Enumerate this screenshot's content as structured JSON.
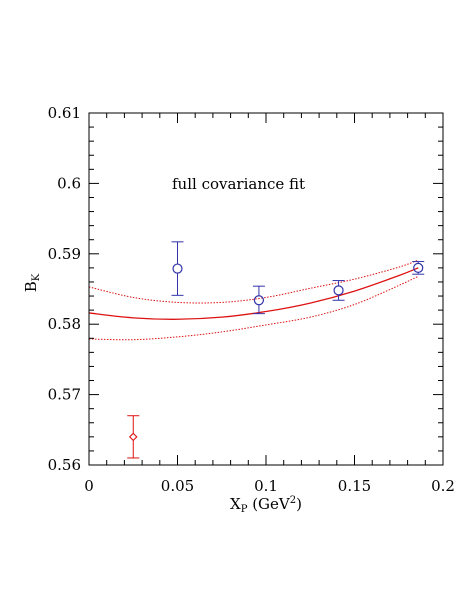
{
  "chart_data": {
    "type": "scatter",
    "title": "",
    "annotation": "full covariance fit",
    "xlabel": {
      "main": "X",
      "sub": "P",
      "units_pre": " (GeV",
      "sup": "2",
      "units_post": ")"
    },
    "ylabel": {
      "main": "B",
      "sub": "K"
    },
    "xlim": [
      0,
      0.2
    ],
    "ylim": [
      0.56,
      0.61
    ],
    "x_ticks": [
      0,
      0.05,
      0.1,
      0.15,
      0.2
    ],
    "x_tick_labels": [
      "0",
      "0.05",
      "0.1",
      "0.15",
      "0.2"
    ],
    "y_ticks": [
      0.56,
      0.57,
      0.58,
      0.59,
      0.6,
      0.61
    ],
    "y_tick_labels": [
      "0.56",
      "0.57",
      "0.58",
      "0.59",
      "0.6",
      "0.61"
    ],
    "grid": false,
    "colors": {
      "data": "#3333aa",
      "fit": "#dd1111",
      "axis": "#000000"
    },
    "series": [
      {
        "marker": "circle",
        "color": "#3333aa",
        "points": [
          {
            "x": 0.05,
            "y": 0.5879,
            "yerr_low": 0.0038,
            "yerr_high": 0.0038
          },
          {
            "x": 0.096,
            "y": 0.5834,
            "yerr_low": 0.0019,
            "yerr_high": 0.002
          },
          {
            "x": 0.141,
            "y": 0.5848,
            "yerr_low": 0.0014,
            "yerr_high": 0.0014
          },
          {
            "x": 0.186,
            "y": 0.588,
            "yerr_low": 0.0009,
            "yerr_high": 0.0009
          }
        ]
      },
      {
        "marker": "diamond",
        "color": "#dd1111",
        "points": [
          {
            "x": 0.025,
            "y": 0.564,
            "yerr_low": 0.003,
            "yerr_high": 0.003
          }
        ]
      }
    ],
    "fit_curves": [
      {
        "style": "solid",
        "color": "#dd1111",
        "x": [
          0.0,
          0.025,
          0.05,
          0.075,
          0.1,
          0.125,
          0.15,
          0.175,
          0.186
        ],
        "y": [
          0.5816,
          0.5809,
          0.5807,
          0.581,
          0.5818,
          0.583,
          0.5847,
          0.5869,
          0.588
        ]
      },
      {
        "style": "dotted",
        "color": "#dd1111",
        "x": [
          0.0,
          0.025,
          0.05,
          0.075,
          0.1,
          0.125,
          0.15,
          0.175,
          0.186
        ],
        "y": [
          0.5853,
          0.5838,
          0.5831,
          0.5831,
          0.5838,
          0.5851,
          0.5864,
          0.5881,
          0.5891
        ]
      },
      {
        "style": "dotted",
        "color": "#dd1111",
        "x": [
          0.0,
          0.025,
          0.05,
          0.075,
          0.1,
          0.125,
          0.15,
          0.175,
          0.186
        ],
        "y": [
          0.5779,
          0.5778,
          0.5782,
          0.5789,
          0.5799,
          0.581,
          0.5828,
          0.5855,
          0.5868
        ]
      }
    ]
  }
}
